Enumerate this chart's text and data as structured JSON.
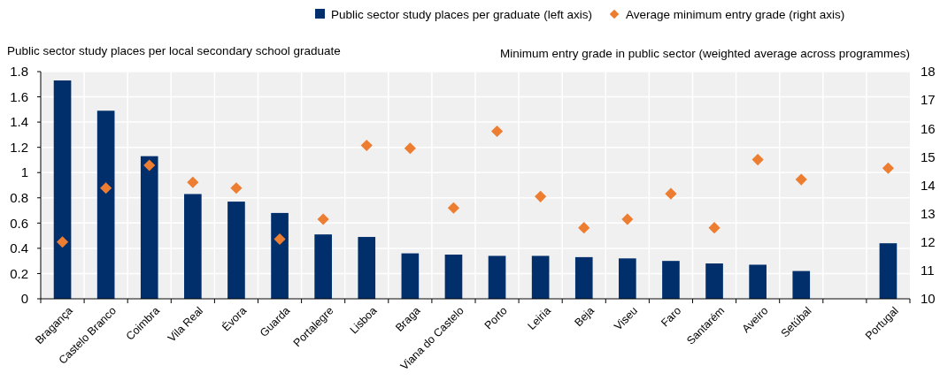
{
  "chart_data": {
    "type": "bar",
    "categories": [
      "Bragança",
      "Castelo Branco",
      "Coimbra",
      "Vila Real",
      "Évora",
      "Guarda",
      "Portalegre",
      "Lisboa",
      "Braga",
      "Viana do Castelo",
      "Porto",
      "Leiria",
      "Beja",
      "Viseu",
      "Faro",
      "Santarém",
      "Aveiro",
      "Setúbal",
      null,
      "Portugal"
    ],
    "series": [
      {
        "name": "Public sector study places per graduate (left axis)",
        "color": "#002f6c",
        "values": [
          1.73,
          1.49,
          1.13,
          0.83,
          0.77,
          0.68,
          0.51,
          0.49,
          0.36,
          0.35,
          0.34,
          0.34,
          0.33,
          0.32,
          0.3,
          0.28,
          0.27,
          0.22,
          null,
          0.44
        ]
      },
      {
        "name": "Average minimum entry grade (right axis)",
        "type": "scatter",
        "axis": "y2",
        "color": "#ed7d31",
        "values": [
          12.0,
          13.9,
          14.7,
          14.1,
          13.9,
          12.1,
          12.8,
          15.4,
          15.3,
          13.2,
          15.9,
          13.6,
          12.5,
          12.8,
          13.7,
          12.5,
          14.9,
          14.2,
          null,
          14.6
        ]
      }
    ],
    "ylabel": "Public sector study places per local secondary school graduate",
    "y2label": "Minimum entry grade in public sector (weighted average across programmes)",
    "ylim": [
      0,
      1.8
    ],
    "yticks": [
      0,
      0.2,
      0.4,
      0.6,
      0.8,
      1,
      1.2,
      1.4,
      1.6,
      1.8
    ],
    "y2lim": [
      10,
      18
    ],
    "y2ticks": [
      10,
      11,
      12,
      13,
      14,
      15,
      16,
      17,
      18
    ],
    "grid": true,
    "legend": "top",
    "marker": "diamond"
  }
}
